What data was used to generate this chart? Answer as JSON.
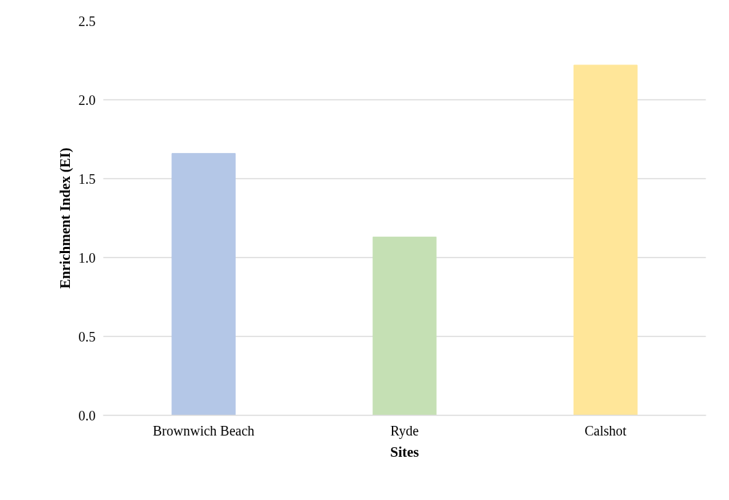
{
  "chart_data": {
    "type": "bar",
    "xlabel": "Sites",
    "ylabel": "Enrichment Index (EI)",
    "categories": [
      "Brownwich Beach",
      "Ryde",
      "Calshot"
    ],
    "values": [
      1.66,
      1.13,
      2.22
    ],
    "colors": [
      "#b4c7e7",
      "#c5e0b4",
      "#ffe699"
    ],
    "ylim": [
      0,
      2.5
    ],
    "yticks": [
      {
        "value": 0,
        "label": "0.0"
      },
      {
        "value": 0.5,
        "label": "0.5"
      },
      {
        "value": 1,
        "label": "1.0"
      },
      {
        "value": 1.5,
        "label": "1.5"
      },
      {
        "value": 2,
        "label": "2.0"
      },
      {
        "value": 2.5,
        "label": "2.5"
      }
    ],
    "grid": "y"
  }
}
